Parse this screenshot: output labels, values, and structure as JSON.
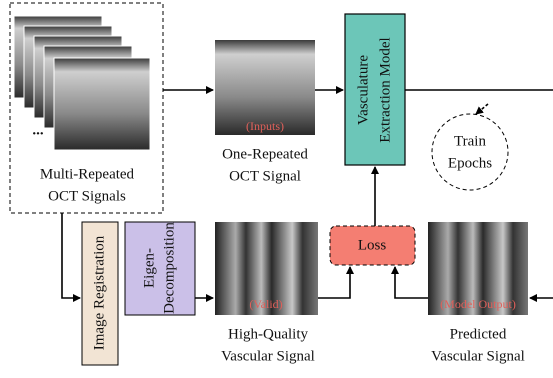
{
  "nodes": {
    "multi_repeated": {
      "lines": [
        "Multi-Repeated",
        "OCT Signals"
      ],
      "ellipsis": "..."
    },
    "one_repeated": {
      "lines": [
        "One-Repeated",
        "OCT Signal"
      ],
      "tag": "(Inputs)"
    },
    "model": {
      "lines": [
        "Vasculature",
        "Extraction Model"
      ]
    },
    "train": {
      "lines": [
        "Train",
        "Epochs"
      ]
    },
    "registration": {
      "label": "Image Registration"
    },
    "eigen": {
      "lines": [
        "Eigen-",
        "Decomposition"
      ]
    },
    "high_quality": {
      "lines": [
        "High-Quality",
        "Vascular Signal"
      ],
      "tag": "(Valid)"
    },
    "loss": {
      "label": "Loss"
    },
    "predicted": {
      "lines": [
        "Predicted",
        "Vascular Signal"
      ],
      "tag": "(Model Output)"
    }
  }
}
